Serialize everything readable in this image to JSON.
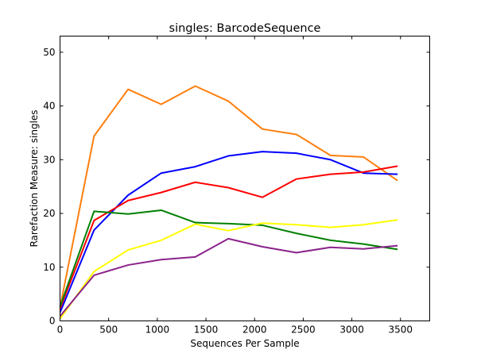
{
  "chart_data": {
    "type": "line",
    "title": "singles: BarcodeSequence",
    "xlabel": "Sequences Per Sample",
    "ylabel": "Rarefaction Measure: singles",
    "xlim": [
      0,
      3800
    ],
    "ylim": [
      0,
      53
    ],
    "xticks": [
      0,
      500,
      1000,
      1500,
      2000,
      2500,
      3000,
      3500
    ],
    "yticks": [
      0,
      10,
      20,
      30,
      40,
      50
    ],
    "grid": false,
    "legend": "none",
    "x": [
      1,
      350,
      700,
      1040,
      1390,
      1730,
      2080,
      2430,
      2780,
      3120,
      3470
    ],
    "series": [
      {
        "color": "#ff7f0e",
        "x": [
          1,
          350,
          700,
          1040,
          1390,
          1730,
          2080,
          2430,
          2780,
          3120,
          3470
        ],
        "values": [
          2.6,
          34.4,
          43.1,
          40.3,
          43.7,
          40.9,
          35.7,
          34.7,
          30.8,
          30.5,
          26.1
        ]
      },
      {
        "color": "#0000ff",
        "x": [
          1,
          350,
          700,
          1040,
          1390,
          1730,
          2080,
          2430,
          2780,
          3120,
          3470
        ],
        "values": [
          1.6,
          16.9,
          23.4,
          27.5,
          28.7,
          30.7,
          31.5,
          31.2,
          30.0,
          27.5,
          27.3
        ]
      },
      {
        "color": "#ff0000",
        "x": [
          1,
          350,
          700,
          1040,
          1390,
          1730,
          2080,
          2430,
          2780,
          3120,
          3470
        ],
        "values": [
          2.3,
          18.7,
          22.4,
          23.9,
          25.8,
          24.8,
          23.0,
          26.4,
          27.3,
          27.7,
          28.8
        ]
      },
      {
        "color": "#008000",
        "x": [
          1,
          350,
          700,
          1040,
          1390,
          1730,
          2080,
          2430,
          2780,
          3120,
          3470
        ],
        "values": [
          2.7,
          20.4,
          19.9,
          20.6,
          18.3,
          18.1,
          17.8,
          16.3,
          15.0,
          14.3,
          13.3
        ]
      },
      {
        "color": "#ffff00",
        "x": [
          1,
          350,
          700,
          1040,
          1390,
          1730,
          2080,
          2430,
          2780,
          3120,
          3470
        ],
        "values": [
          0.4,
          9.2,
          13.2,
          15.0,
          18.0,
          16.8,
          18.2,
          17.9,
          17.4,
          17.9,
          18.8
        ]
      },
      {
        "color": "#8b228b",
        "x": [
          1,
          350,
          700,
          1040,
          1390,
          1730,
          2080,
          2430,
          2780,
          3120,
          3470
        ],
        "values": [
          0.9,
          8.5,
          10.4,
          11.4,
          11.9,
          15.3,
          13.8,
          12.7,
          13.7,
          13.4,
          14.0
        ]
      }
    ]
  }
}
